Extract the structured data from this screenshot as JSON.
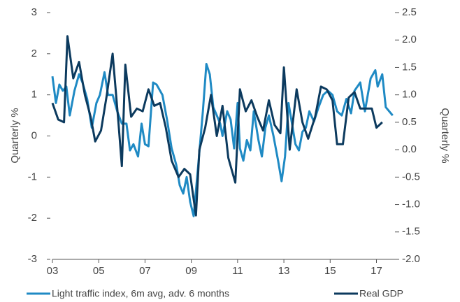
{
  "chart_data": {
    "type": "line",
    "ylabel": "Quarterly %",
    "y2label": "Quarterly %",
    "xlim": [
      2003,
      2017.8
    ],
    "xticks": [
      {
        "value": 2003,
        "label": "03"
      },
      {
        "value": 2005,
        "label": "05"
      },
      {
        "value": 2007,
        "label": "07"
      },
      {
        "value": 2009,
        "label": "09"
      },
      {
        "value": 2011,
        "label": "11"
      },
      {
        "value": 2013,
        "label": "13"
      },
      {
        "value": 2015,
        "label": "15"
      },
      {
        "value": 2017,
        "label": "17"
      }
    ],
    "ylim": [
      -3,
      3
    ],
    "yticks": [
      -3,
      -2,
      -1,
      0,
      1,
      2,
      3
    ],
    "y2lim": [
      -2,
      2.5
    ],
    "y2ticks": [
      {
        "value": -2,
        "label": "-2.0"
      },
      -1.5,
      {
        "value": -1,
        "label": "-1.0"
      },
      -0.5,
      {
        "value": 0,
        "label": "0.0"
      },
      0.5,
      {
        "value": 1,
        "label": "1.0"
      },
      1.5,
      {
        "value": 2,
        "label": "2.0"
      },
      2.5
    ],
    "legend": "bottom",
    "series": [
      {
        "name": "Light traffic index, 6m avg, adv. 6 months",
        "color": "#1f8ac4",
        "axis": "y",
        "x": [
          2003.0,
          2003.15,
          2003.3,
          2003.45,
          2003.6,
          2003.75,
          2003.95,
          2004.15,
          2004.3,
          2004.5,
          2004.7,
          2004.9,
          2005.05,
          2005.25,
          2005.4,
          2005.6,
          2005.8,
          2006.0,
          2006.2,
          2006.35,
          2006.5,
          2006.7,
          2006.85,
          2007.0,
          2007.15,
          2007.35,
          2007.5,
          2007.75,
          2007.95,
          2008.15,
          2008.35,
          2008.5,
          2008.65,
          2008.8,
          2008.95,
          2009.1,
          2009.3,
          2009.5,
          2009.65,
          2009.8,
          2009.95,
          2010.1,
          2010.25,
          2010.35,
          2010.55,
          2010.7,
          2010.85,
          2011.0,
          2011.1,
          2011.25,
          2011.4,
          2011.55,
          2011.7,
          2011.9,
          2012.05,
          2012.2,
          2012.35,
          2012.55,
          2012.75,
          2012.9,
          2013.05,
          2013.2,
          2013.35,
          2013.5,
          2013.65,
          2013.8,
          2013.95,
          2014.1,
          2014.3,
          2014.5,
          2014.7,
          2014.9,
          2015.1,
          2015.3,
          2015.5,
          2015.7,
          2015.9,
          2016.05,
          2016.3,
          2016.5,
          2016.75,
          2016.95,
          2017.05,
          2017.25,
          2017.4,
          2017.55,
          2017.7
        ],
        "values": [
          1.45,
          0.8,
          1.25,
          1.1,
          1.2,
          0.5,
          1.1,
          1.5,
          1.3,
          0.9,
          0.2,
          0.8,
          1.0,
          1.55,
          1.0,
          1.0,
          0.6,
          0.3,
          0.3,
          -0.35,
          -0.2,
          -0.5,
          0.3,
          -0.2,
          -0.25,
          1.3,
          1.25,
          1.0,
          0.4,
          -0.3,
          -0.7,
          -1.2,
          -1.4,
          -1.0,
          -1.6,
          -1.95,
          -0.7,
          0.6,
          1.75,
          1.5,
          0.7,
          0.5,
          0.3,
          0.0,
          0.6,
          0.4,
          -0.3,
          0.8,
          -0.3,
          -0.6,
          -0.1,
          -0.35,
          0.6,
          -0.1,
          -0.5,
          0.2,
          0.5,
          0.0,
          -0.6,
          -1.1,
          -0.5,
          0.8,
          0.3,
          -0.2,
          -0.35,
          0.1,
          0.2,
          0.6,
          0.35,
          0.7,
          1.0,
          1.1,
          1.0,
          0.6,
          0.5,
          0.9,
          0.55,
          1.1,
          1.3,
          0.6,
          1.4,
          1.6,
          1.2,
          1.5,
          0.7,
          0.6,
          0.5
        ]
      },
      {
        "name": "Real GDP",
        "color": "#0c3a5e",
        "axis": "y2",
        "x": [
          2003.0,
          2003.25,
          2003.5,
          2003.65,
          2003.9,
          2004.15,
          2004.4,
          2004.65,
          2004.85,
          2005.1,
          2005.35,
          2005.6,
          2005.85,
          2006.0,
          2006.15,
          2006.4,
          2006.65,
          2006.9,
          2007.15,
          2007.4,
          2007.65,
          2007.9,
          2008.15,
          2008.45,
          2008.7,
          2008.95,
          2009.2,
          2009.35,
          2009.6,
          2009.85,
          2010.1,
          2010.35,
          2010.6,
          2010.9,
          2011.1,
          2011.35,
          2011.6,
          2011.85,
          2012.1,
          2012.35,
          2012.6,
          2012.85,
          2013.0,
          2013.25,
          2013.55,
          2013.8,
          2014.05,
          2014.35,
          2014.6,
          2014.85,
          2015.1,
          2015.3,
          2015.55,
          2015.8,
          2016.05,
          2016.3,
          2016.55,
          2016.8,
          2017.0,
          2017.25
        ],
        "values": [
          0.85,
          0.55,
          0.5,
          2.07,
          1.3,
          1.6,
          1.0,
          0.6,
          0.15,
          0.35,
          1.0,
          1.75,
          0.5,
          -0.3,
          1.55,
          0.6,
          0.75,
          0.7,
          1.1,
          0.8,
          0.85,
          0.4,
          -0.2,
          -0.5,
          -0.35,
          -0.45,
          -1.2,
          0.0,
          0.4,
          1.0,
          0.25,
          0.8,
          -0.15,
          -0.6,
          1.1,
          0.7,
          0.9,
          0.6,
          0.35,
          0.9,
          0.45,
          0.3,
          1.5,
          0.0,
          1.1,
          0.5,
          0.2,
          0.6,
          1.15,
          1.1,
          0.9,
          0.1,
          0.1,
          0.95,
          1.05,
          0.75,
          0.75,
          0.75,
          0.4,
          0.5
        ]
      }
    ]
  }
}
